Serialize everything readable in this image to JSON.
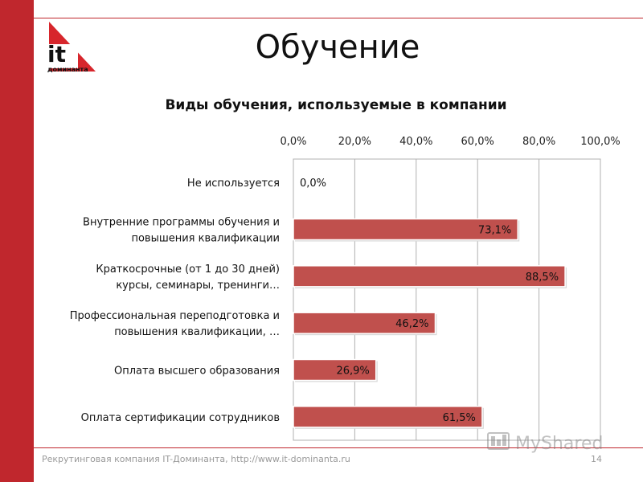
{
  "header": {
    "title": "Обучение",
    "logo_text": "it",
    "logo_subtext": "доминанта"
  },
  "footer": {
    "text": "Рекрутинговая компания IT-Доминанта, http://www.it-dominanta.ru",
    "page_number": "14"
  },
  "watermark": {
    "text": "MyShared"
  },
  "colors": {
    "accent": "#c0272d",
    "bar": "#c0504d",
    "grid": "#b0b0b0"
  },
  "chart_data": {
    "type": "bar",
    "orientation": "horizontal",
    "title": "Виды обучения, используемые в компании",
    "categories": [
      [
        "Не используется"
      ],
      [
        "Внутренние программы обучения и",
        "повышения квалификации"
      ],
      [
        "Краткосрочные (от 1 до 30 дней)",
        "курсы, семинары, тренинги…"
      ],
      [
        "Профессиональная переподготовка и",
        "повышения квалификации, …"
      ],
      [
        "Оплата высшего образования"
      ],
      [
        "Оплата сертификации сотрудников"
      ]
    ],
    "values": [
      0.0,
      73.1,
      88.5,
      46.2,
      26.9,
      61.5
    ],
    "value_labels": [
      "0,0%",
      "73,1%",
      "88,5%",
      "46,2%",
      "26,9%",
      "61,5%"
    ],
    "xlim": [
      0,
      100
    ],
    "x_ticks": [
      0,
      20,
      40,
      60,
      80,
      100
    ],
    "x_tick_labels": [
      "0,0%",
      "20,0%",
      "40,0%",
      "60,0%",
      "80,0%",
      "100,0%"
    ],
    "x_axis_position": "top",
    "grid": true
  }
}
